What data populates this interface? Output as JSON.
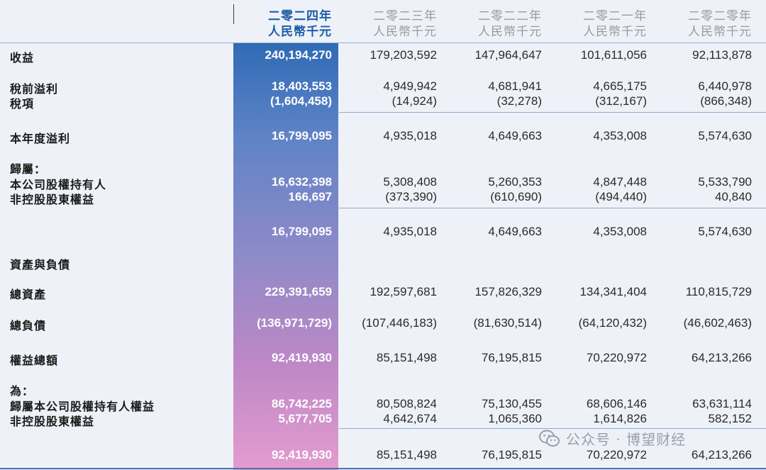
{
  "headers": [
    {
      "year": "二零二四年",
      "unit": "人民幣千元"
    },
    {
      "year": "二零二三年",
      "unit": "人民幣千元"
    },
    {
      "year": "二零二二年",
      "unit": "人民幣千元"
    },
    {
      "year": "二零二一年",
      "unit": "人民幣千元"
    },
    {
      "year": "二零二零年",
      "unit": "人民幣千元"
    }
  ],
  "rows": [
    {
      "label": "收益",
      "values": [
        "240,194,270",
        "179,203,592",
        "147,964,647",
        "101,611,056",
        "92,113,878"
      ]
    },
    {
      "label": "稅前溢利",
      "values": [
        "18,403,553",
        "4,949,942",
        "4,681,941",
        "4,665,175",
        "6,440,978"
      ]
    },
    {
      "label": "稅項",
      "values": [
        "(1,604,458)",
        "(14,924)",
        "(32,278)",
        "(312,167)",
        "(866,348)"
      ]
    },
    {
      "label": "本年度溢利",
      "values": [
        "16,799,095",
        "4,935,018",
        "4,649,663",
        "4,353,008",
        "5,574,630"
      ]
    },
    {
      "label": "歸屬：",
      "values": [
        "",
        "",
        "",
        "",
        ""
      ]
    },
    {
      "label": "本公司股權持有人",
      "values": [
        "16,632,398",
        "5,308,408",
        "5,260,353",
        "4,847,448",
        "5,533,790"
      ]
    },
    {
      "label": "非控股股東權益",
      "values": [
        "166,697",
        "(373,390)",
        "(610,690)",
        "(494,440)",
        "40,840"
      ]
    },
    {
      "label": "",
      "values": [
        "16,799,095",
        "4,935,018",
        "4,649,663",
        "4,353,008",
        "5,574,630"
      ]
    },
    {
      "label": "資產與負債",
      "values": [
        "",
        "",
        "",
        "",
        ""
      ]
    },
    {
      "label": "總資產",
      "values": [
        "229,391,659",
        "192,597,681",
        "157,826,329",
        "134,341,404",
        "110,815,729"
      ]
    },
    {
      "label": "總負債",
      "values": [
        "(136,971,729)",
        "(107,446,183)",
        "(81,630,514)",
        "(64,120,432)",
        "(46,602,463)"
      ]
    },
    {
      "label": "權益總額",
      "values": [
        "92,419,930",
        "85,151,498",
        "76,195,815",
        "70,220,972",
        "64,213,266"
      ]
    },
    {
      "label": "為：",
      "values": [
        "",
        "",
        "",
        "",
        ""
      ]
    },
    {
      "label": "歸屬本公司股權持有人權益",
      "values": [
        "86,742,225",
        "80,508,824",
        "75,130,455",
        "68,606,146",
        "63,631,114"
      ]
    },
    {
      "label": "非控股股東權益",
      "values": [
        "5,677,705",
        "4,642,674",
        "1,065,360",
        "1,614,826",
        "582,152"
      ]
    },
    {
      "label": "",
      "values": [
        "92,419,930",
        "85,151,498",
        "76,195,815",
        "70,220,972",
        "64,213,266"
      ]
    }
  ],
  "watermark": {
    "text": "公众号 · 博望财经",
    "icon": "wechat-icon"
  },
  "colors": {
    "highlight_top": "#2f6bb5",
    "highlight_bottom": "#e39ccf",
    "header_current": "#1d5ba8",
    "rule": "#8fa8cc"
  }
}
